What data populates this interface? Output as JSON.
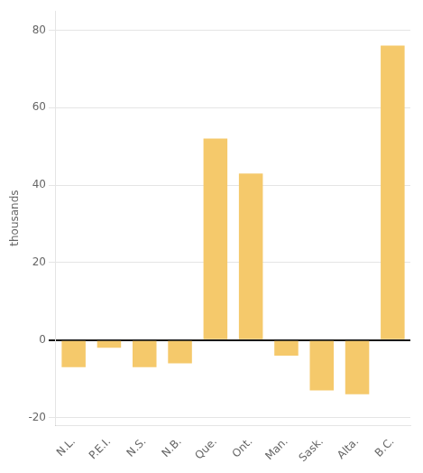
{
  "chart_data": {
    "type": "bar",
    "ylabel": "thousands",
    "categories": [
      "N.L.",
      "P.E.I.",
      "N.S.",
      "N.B.",
      "Que.",
      "Ont.",
      "Man.",
      "Sask.",
      "Alta.",
      "B.C."
    ],
    "values": [
      -7,
      -2,
      -7,
      -6,
      52,
      43,
      -4,
      -13,
      -14,
      76
    ],
    "color": "#F5C96B",
    "ylim": [
      -22,
      85
    ],
    "yticks": [
      -20,
      0,
      20,
      40,
      60,
      80
    ],
    "grid": true
  }
}
